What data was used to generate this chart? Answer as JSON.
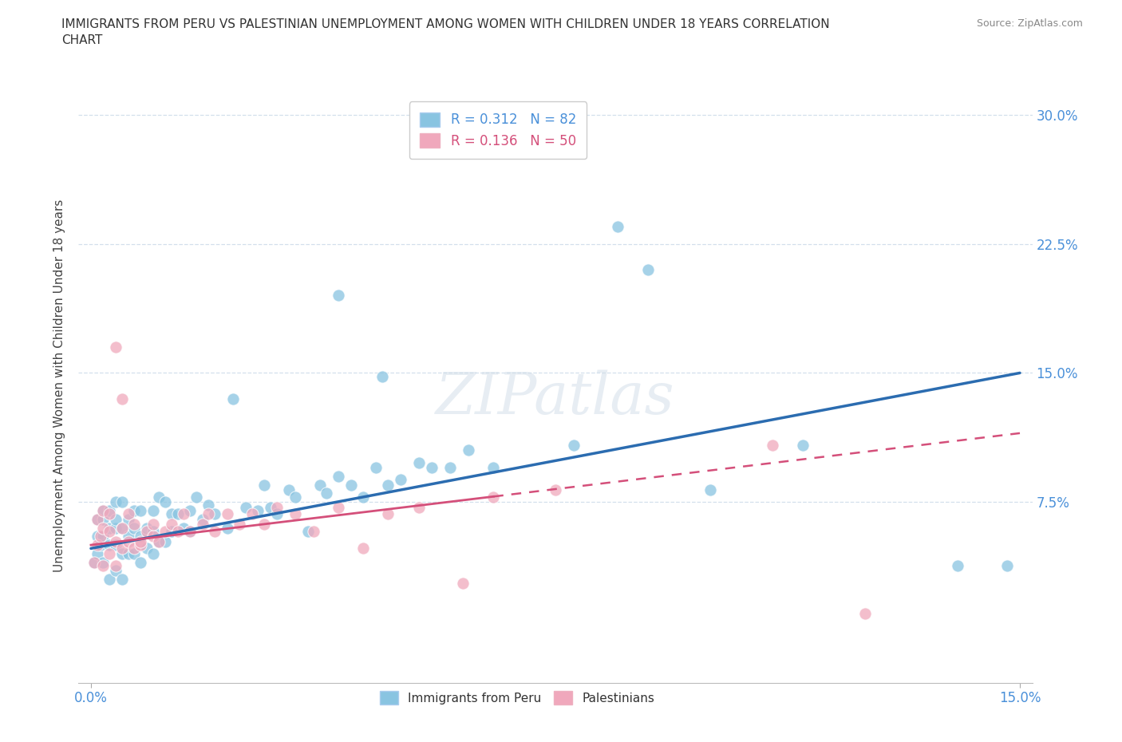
{
  "title": "IMMIGRANTS FROM PERU VS PALESTINIAN UNEMPLOYMENT AMONG WOMEN WITH CHILDREN UNDER 18 YEARS CORRELATION\nCHART",
  "source": "Source: ZipAtlas.com",
  "ylabel": "Unemployment Among Women with Children Under 18 years",
  "xlim": [
    -0.002,
    0.152
  ],
  "ylim": [
    -0.03,
    0.315
  ],
  "yticks": [
    0.0,
    0.075,
    0.15,
    0.225,
    0.3
  ],
  "ytick_labels": [
    "",
    "7.5%",
    "15.0%",
    "22.5%",
    "30.0%"
  ],
  "xticks": [
    0.0,
    0.15
  ],
  "xtick_labels": [
    "0.0%",
    "15.0%"
  ],
  "series1_name": "Immigrants from Peru",
  "series1_color": "#89c4e1",
  "series1_line_color": "#2b6cb0",
  "series2_name": "Palestinians",
  "series2_color": "#f0a8bc",
  "series2_line_color": "#d44f7a",
  "series1_R": 0.312,
  "series1_N": 82,
  "series2_R": 0.136,
  "series2_N": 50,
  "watermark": "ZIPatlas",
  "background_color": "#ffffff",
  "peru_x": [
    0.0005,
    0.001,
    0.001,
    0.001,
    0.0015,
    0.002,
    0.002,
    0.002,
    0.002,
    0.003,
    0.003,
    0.003,
    0.003,
    0.004,
    0.004,
    0.004,
    0.004,
    0.004,
    0.005,
    0.005,
    0.005,
    0.005,
    0.006,
    0.006,
    0.006,
    0.007,
    0.007,
    0.007,
    0.008,
    0.008,
    0.008,
    0.009,
    0.009,
    0.01,
    0.01,
    0.01,
    0.011,
    0.011,
    0.012,
    0.012,
    0.013,
    0.013,
    0.014,
    0.015,
    0.016,
    0.016,
    0.017,
    0.018,
    0.019,
    0.02,
    0.022,
    0.023,
    0.025,
    0.027,
    0.028,
    0.029,
    0.03,
    0.032,
    0.033,
    0.035,
    0.037,
    0.038,
    0.04,
    0.042,
    0.044,
    0.046,
    0.048,
    0.05,
    0.053,
    0.055,
    0.058,
    0.061,
    0.047,
    0.065,
    0.04,
    0.078,
    0.085,
    0.09,
    0.1,
    0.115,
    0.14,
    0.148
  ],
  "peru_y": [
    0.04,
    0.045,
    0.055,
    0.065,
    0.05,
    0.04,
    0.055,
    0.065,
    0.07,
    0.03,
    0.05,
    0.06,
    0.07,
    0.035,
    0.05,
    0.06,
    0.065,
    0.075,
    0.03,
    0.045,
    0.06,
    0.075,
    0.045,
    0.055,
    0.065,
    0.045,
    0.06,
    0.07,
    0.04,
    0.055,
    0.07,
    0.048,
    0.06,
    0.045,
    0.058,
    0.07,
    0.052,
    0.078,
    0.052,
    0.075,
    0.058,
    0.068,
    0.068,
    0.06,
    0.058,
    0.07,
    0.078,
    0.065,
    0.073,
    0.068,
    0.06,
    0.135,
    0.072,
    0.07,
    0.085,
    0.072,
    0.068,
    0.082,
    0.078,
    0.058,
    0.085,
    0.08,
    0.09,
    0.085,
    0.078,
    0.095,
    0.085,
    0.088,
    0.098,
    0.095,
    0.095,
    0.105,
    0.148,
    0.095,
    0.195,
    0.108,
    0.235,
    0.21,
    0.082,
    0.108,
    0.038,
    0.038
  ],
  "pal_x": [
    0.0005,
    0.001,
    0.001,
    0.0015,
    0.002,
    0.002,
    0.002,
    0.003,
    0.003,
    0.003,
    0.004,
    0.004,
    0.004,
    0.005,
    0.005,
    0.005,
    0.006,
    0.006,
    0.007,
    0.007,
    0.008,
    0.008,
    0.009,
    0.01,
    0.01,
    0.011,
    0.012,
    0.013,
    0.014,
    0.015,
    0.016,
    0.018,
    0.019,
    0.02,
    0.022,
    0.024,
    0.026,
    0.028,
    0.03,
    0.033,
    0.036,
    0.04,
    0.044,
    0.048,
    0.053,
    0.065,
    0.06,
    0.075,
    0.11,
    0.125
  ],
  "pal_y": [
    0.04,
    0.05,
    0.065,
    0.055,
    0.038,
    0.06,
    0.07,
    0.045,
    0.058,
    0.068,
    0.038,
    0.052,
    0.165,
    0.048,
    0.06,
    0.135,
    0.052,
    0.068,
    0.048,
    0.062,
    0.05,
    0.052,
    0.058,
    0.055,
    0.062,
    0.052,
    0.058,
    0.062,
    0.058,
    0.068,
    0.058,
    0.062,
    0.068,
    0.058,
    0.068,
    0.062,
    0.068,
    0.062,
    0.072,
    0.068,
    0.058,
    0.072,
    0.048,
    0.068,
    0.072,
    0.078,
    0.028,
    0.082,
    0.108,
    0.01
  ],
  "peru_trend_x0": 0.0,
  "peru_trend_y0": 0.048,
  "peru_trend_x1": 0.15,
  "peru_trend_y1": 0.15,
  "pal_trend_x0": 0.0,
  "pal_trend_y0": 0.05,
  "pal_trend_x1": 0.15,
  "pal_trend_y1": 0.115
}
